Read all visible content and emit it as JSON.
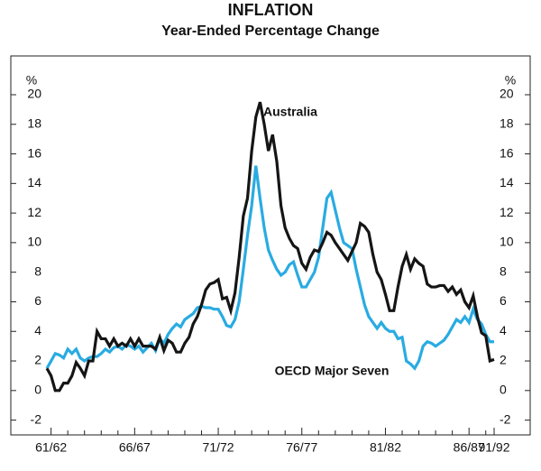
{
  "chart_data": {
    "type": "line",
    "title": "INFLATION",
    "subtitle": "Year-Ended Percentage Change",
    "y_unit": "%",
    "annotations": [
      "Australia",
      "OECD Major Seven"
    ],
    "categories": [
      null,
      "61/62",
      null,
      null,
      null,
      null,
      null,
      null,
      null,
      null,
      null,
      null,
      null,
      null,
      null,
      null,
      null,
      null,
      null,
      null,
      null,
      "66/67",
      null,
      null,
      null,
      null,
      null,
      null,
      null,
      null,
      null,
      null,
      null,
      null,
      null,
      null,
      null,
      null,
      null,
      null,
      null,
      "71/72",
      null,
      null,
      null,
      null,
      null,
      null,
      null,
      null,
      null,
      null,
      null,
      null,
      null,
      null,
      null,
      null,
      null,
      null,
      null,
      "76/77",
      null,
      null,
      null,
      null,
      null,
      null,
      null,
      null,
      null,
      null,
      null,
      null,
      null,
      null,
      null,
      null,
      null,
      null,
      null,
      "81/82",
      null,
      null,
      null,
      null,
      null,
      null,
      null,
      null,
      null,
      null,
      null,
      null,
      null,
      null,
      null,
      null,
      null,
      null,
      null,
      "86/87",
      null,
      null,
      null,
      null,
      null,
      "91/92"
    ],
    "series": [
      {
        "name": "Australia",
        "color": "#151515",
        "values": [
          1.5,
          1.0,
          0,
          0,
          0.5,
          0.5,
          1.0,
          1.9,
          1.5,
          1.0,
          2.0,
          2.0,
          4.0,
          3.5,
          3.5,
          3.0,
          3.5,
          3.0,
          3.2,
          3.0,
          3.5,
          3.0,
          3.5,
          3.0,
          3.0,
          3.0,
          2.8,
          3.6,
          2.7,
          3.4,
          3.2,
          2.6,
          2.6,
          3.2,
          3.6,
          4.5,
          5.0,
          5.8,
          6.8,
          7.2,
          7.3,
          7.5,
          6.2,
          6.3,
          5.4,
          6.6,
          9.0,
          11.8,
          13.0,
          16.2,
          18.5,
          19.5,
          18.0,
          16.2,
          17.3,
          15.5,
          12.5,
          11.0,
          10.3,
          9.8,
          9.6,
          8.6,
          8.2,
          9.0,
          9.5,
          9.4,
          10.0,
          10.7,
          10.5,
          10.0,
          9.6,
          9.2,
          8.8,
          9.4,
          10.0,
          11.3,
          11.1,
          10.7,
          9.2,
          8.0,
          7.5,
          6.5,
          5.4,
          5.4,
          7.0,
          8.4,
          9.2,
          8.2,
          8.9,
          8.6,
          8.4,
          7.2,
          7.0,
          7.0,
          7.1,
          7.1,
          6.7,
          7.0,
          6.5,
          6.8,
          6.0,
          5.6,
          6.4,
          5.0,
          3.9,
          3.7,
          2.0,
          2.1
        ]
      },
      {
        "name": "OECD Major Seven",
        "color": "#29abe2",
        "values": [
          1.5,
          2.0,
          2.5,
          2.4,
          2.2,
          2.8,
          2.5,
          2.8,
          2.2,
          2.0,
          2.2,
          2.3,
          2.3,
          2.5,
          2.8,
          2.6,
          2.9,
          3.0,
          2.8,
          3.1,
          3.0,
          2.8,
          3.0,
          2.6,
          2.9,
          3.2,
          2.7,
          3.5,
          3.2,
          3.8,
          4.2,
          4.5,
          4.3,
          4.8,
          5.0,
          5.2,
          5.6,
          5.7,
          5.6,
          5.6,
          5.5,
          5.5,
          5.0,
          4.4,
          4.3,
          4.8,
          6.0,
          8.2,
          10.5,
          12.5,
          15.2,
          13.0,
          11.0,
          9.5,
          8.8,
          8.2,
          7.8,
          8.0,
          8.5,
          8.7,
          7.8,
          7.0,
          7.0,
          7.5,
          8.0,
          9.0,
          11.0,
          13.0,
          13.4,
          12.2,
          11.0,
          10.0,
          9.8,
          9.6,
          8.2,
          7.0,
          5.8,
          5.0,
          4.6,
          4.2,
          4.6,
          4.2,
          4.0,
          4.0,
          3.5,
          3.6,
          2.0,
          1.8,
          1.5,
          2.0,
          3.0,
          3.3,
          3.2,
          3.0,
          3.2,
          3.4,
          3.8,
          4.3,
          4.8,
          4.6,
          5.0,
          4.6,
          5.5,
          4.8,
          4.5,
          3.8,
          3.3,
          3.3
        ]
      }
    ],
    "ylim": [
      -3,
      22.5
    ],
    "yticks": [
      -2,
      0,
      2,
      4,
      6,
      8,
      10,
      12,
      14,
      16,
      18,
      20
    ],
    "grid": false
  }
}
